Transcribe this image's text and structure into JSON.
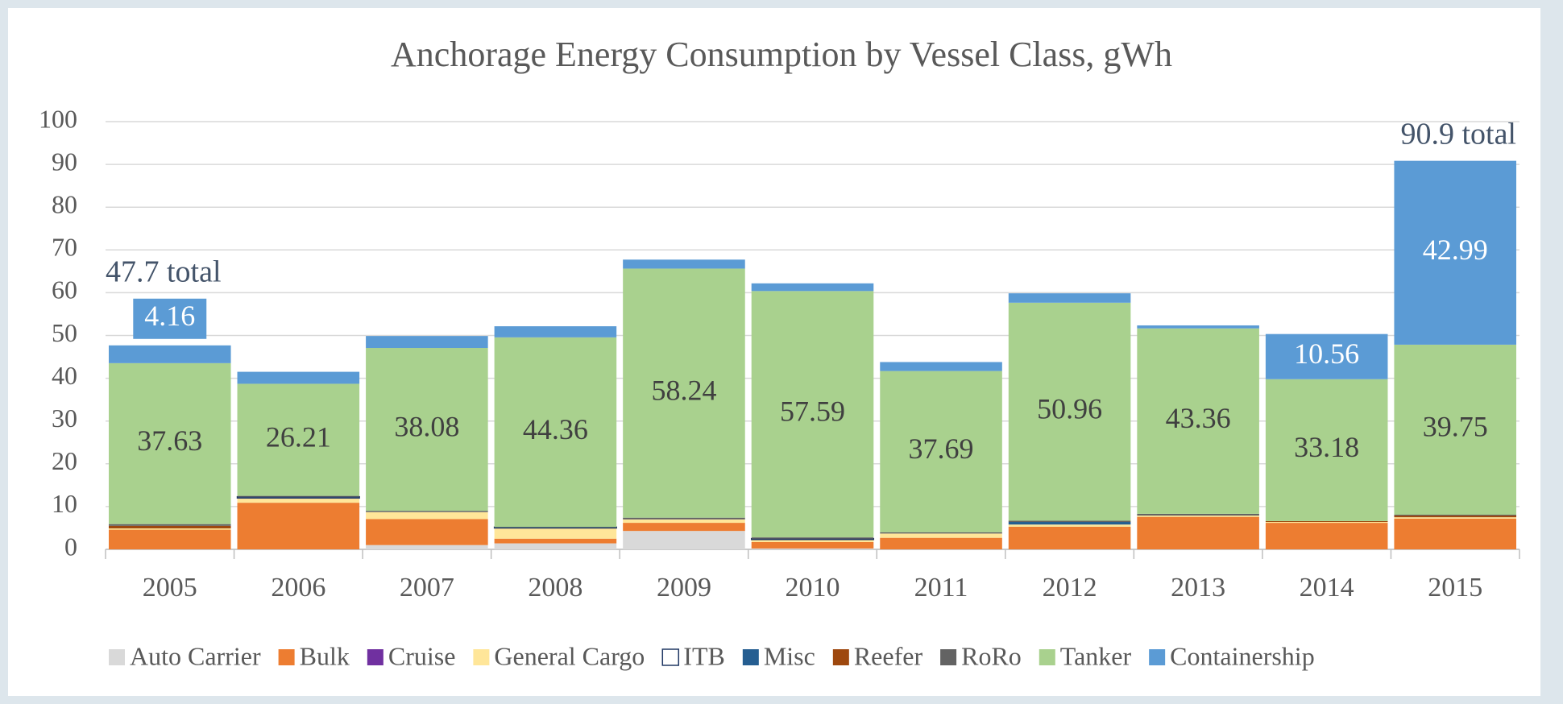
{
  "chart_data": {
    "type": "stacked_bar",
    "title": "Anchorage Energy Consumption by Vessel Class, gWh",
    "categories": [
      "2005",
      "2006",
      "2007",
      "2008",
      "2009",
      "2010",
      "2011",
      "2012",
      "2013",
      "2014",
      "2015"
    ],
    "series": [
      {
        "name": "Auto Carrier",
        "color": "#d9d9d9",
        "values": [
          0,
          0,
          1.0,
          1.4,
          4.3,
          0.2,
          0,
          0,
          0,
          0,
          0
        ]
      },
      {
        "name": "Bulk",
        "color": "#ed7d31",
        "values": [
          4.6,
          10.9,
          6.1,
          1.1,
          1.9,
          1.5,
          2.7,
          5.3,
          7.6,
          6.2,
          7.2
        ]
      },
      {
        "name": "Cruise",
        "color": "#7030a0",
        "values": [
          0,
          0,
          0,
          0,
          0,
          0,
          0,
          0,
          0,
          0,
          0
        ]
      },
      {
        "name": "General Cargo",
        "color": "#ffe699",
        "values": [
          0.3,
          1.1,
          1.6,
          2.5,
          0.8,
          0.6,
          1.0,
          0.5,
          0.3,
          0.2,
          0.3
        ]
      },
      {
        "name": "ITB",
        "color": "#ffffff",
        "stroke": "#203864",
        "values": [
          0,
          0.3,
          0,
          0.2,
          0,
          0.2,
          0,
          0,
          0,
          0,
          0
        ]
      },
      {
        "name": "Misc",
        "color": "#255e91",
        "values": [
          0,
          0,
          0,
          0,
          0,
          0,
          0,
          0.6,
          0,
          0,
          0
        ]
      },
      {
        "name": "Reefer",
        "color": "#9e480e",
        "values": [
          0.6,
          0,
          0,
          0,
          0,
          0,
          0,
          0,
          0,
          0.2,
          0.4
        ]
      },
      {
        "name": "RoRo",
        "color": "#636363",
        "values": [
          0.4,
          0.2,
          0.3,
          0,
          0.4,
          0.3,
          0.3,
          0.3,
          0.4,
          0,
          0.2
        ]
      },
      {
        "name": "Tanker",
        "color": "#a9d18e",
        "show_labels": [
          true,
          true,
          true,
          true,
          true,
          true,
          true,
          true,
          true,
          true,
          true
        ],
        "values": [
          37.63,
          26.21,
          38.08,
          44.36,
          58.24,
          57.59,
          37.69,
          50.96,
          43.36,
          33.18,
          39.75
        ]
      },
      {
        "name": "Containership",
        "color": "#5b9bd5",
        "show_labels": [
          true,
          false,
          false,
          false,
          false,
          false,
          false,
          false,
          false,
          true,
          true
        ],
        "values": [
          4.16,
          2.8,
          2.8,
          2.6,
          2.1,
          1.8,
          2.1,
          2.2,
          0.7,
          10.56,
          42.99
        ]
      }
    ],
    "annotations": [
      {
        "text": "47.7 total",
        "category": "2005"
      },
      {
        "text": "90.9 total",
        "category": "2015"
      }
    ],
    "ylim": [
      0,
      100
    ],
    "yticks": [
      0,
      10,
      20,
      30,
      40,
      50,
      60,
      70,
      80,
      90,
      100
    ],
    "grid": true,
    "legend": "bottom"
  }
}
